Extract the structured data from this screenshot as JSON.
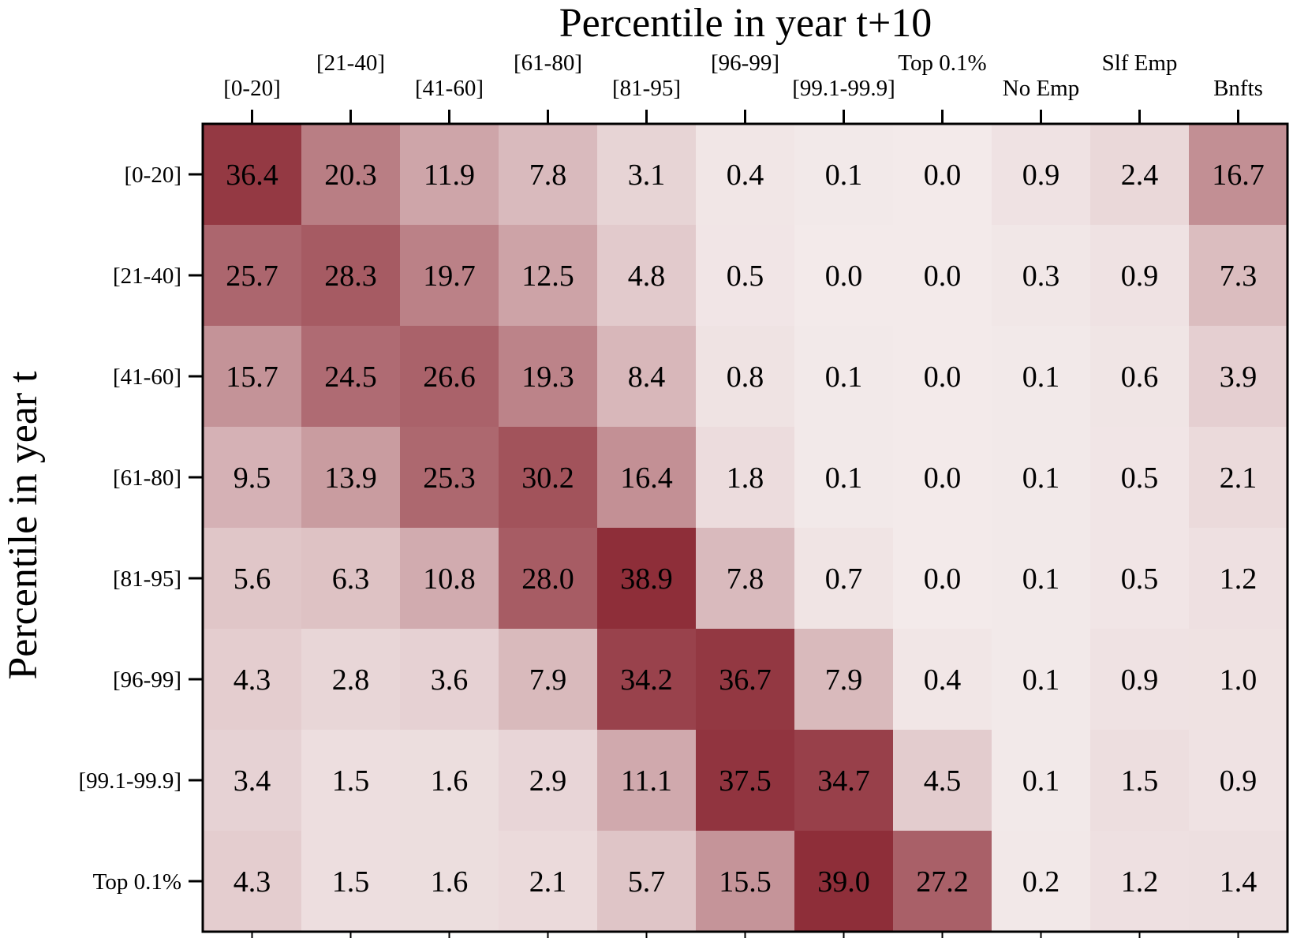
{
  "chart_data": {
    "type": "heatmap",
    "title": "Percentile in year t+10",
    "xlabel": "Percentile in year t+10",
    "ylabel": "Percentile in year t",
    "x_categories": [
      "[0-20]",
      "[21-40]",
      "[41-60]",
      "[61-80]",
      "[81-95]",
      "[96-99]",
      "[99.1-99.9]",
      "Top 0.1%",
      "No Emp",
      "Slf Emp",
      "Bnfts"
    ],
    "y_categories": [
      "[0-20]",
      "[21-40]",
      "[41-60]",
      "[61-80]",
      "[81-95]",
      "[96-99]",
      "[99.1-99.9]",
      "Top 0.1%"
    ],
    "values": [
      [
        36.4,
        20.3,
        11.9,
        7.8,
        3.1,
        0.4,
        0.1,
        0.0,
        0.9,
        2.4,
        16.7
      ],
      [
        25.7,
        28.3,
        19.7,
        12.5,
        4.8,
        0.5,
        0.0,
        0.0,
        0.3,
        0.9,
        7.3
      ],
      [
        15.7,
        24.5,
        26.6,
        19.3,
        8.4,
        0.8,
        0.1,
        0.0,
        0.1,
        0.6,
        3.9
      ],
      [
        9.5,
        13.9,
        25.3,
        30.2,
        16.4,
        1.8,
        0.1,
        0.0,
        0.1,
        0.5,
        2.1
      ],
      [
        5.6,
        6.3,
        10.8,
        28.0,
        38.9,
        7.8,
        0.7,
        0.0,
        0.1,
        0.5,
        1.2
      ],
      [
        4.3,
        2.8,
        3.6,
        7.9,
        34.2,
        36.7,
        7.9,
        0.4,
        0.1,
        0.9,
        1.0
      ],
      [
        3.4,
        1.5,
        1.6,
        2.9,
        11.1,
        37.5,
        34.7,
        4.5,
        0.1,
        1.5,
        0.9
      ],
      [
        4.3,
        1.5,
        1.6,
        2.1,
        5.7,
        15.5,
        39.0,
        27.2,
        0.2,
        1.2,
        1.4
      ]
    ],
    "color_low": "#f3eaea",
    "color_high": "#8c2a35",
    "value_range": [
      0,
      40
    ]
  }
}
